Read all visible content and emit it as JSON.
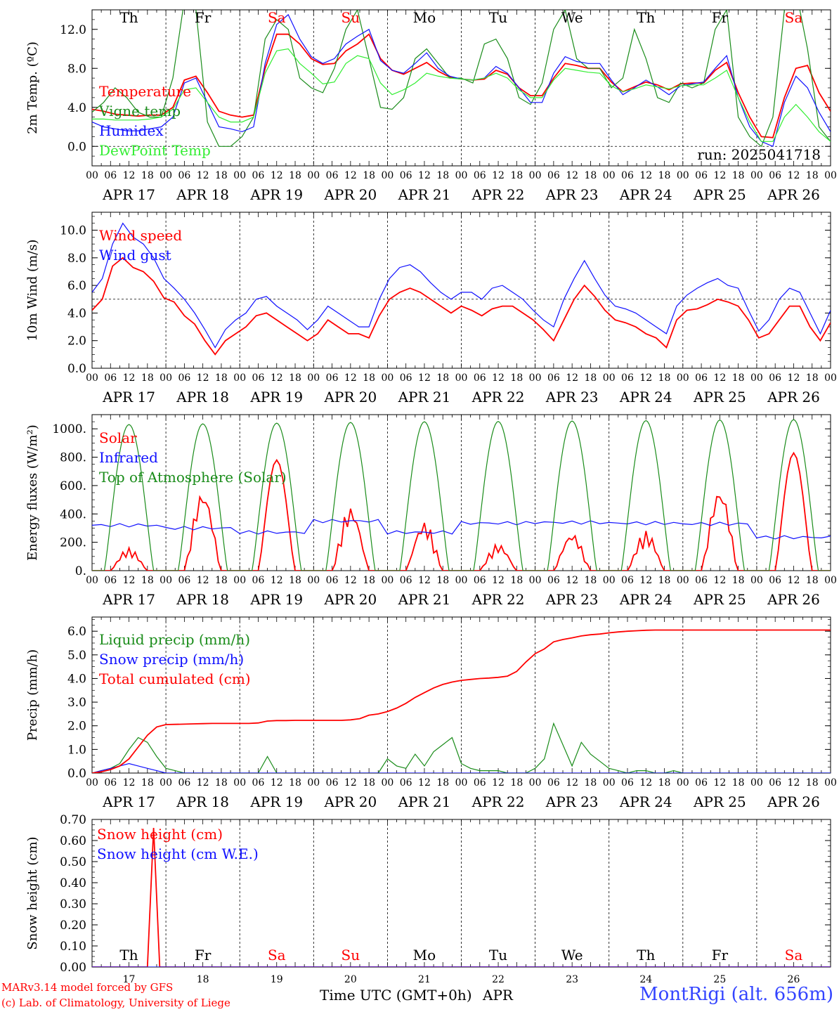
{
  "footer": {
    "model": "MARv3.14 model forced by GFS",
    "lab": "(c) Lab. of Climatology, University of Liege",
    "station": "MontRigi (alt. 656m)",
    "xlabel": "Time UTC (GMT+0h)",
    "month": "APR"
  },
  "run_label": "run: 2025041718",
  "colors": {
    "red": "#ff0000",
    "green": "#1a8c1a",
    "blue": "#1010ff",
    "lightgreen": "#33ee33",
    "weekend": "#ff0000",
    "weekday": "#000000"
  },
  "days": [
    "APR 17",
    "APR 18",
    "APR 19",
    "APR 20",
    "APR 21",
    "APR 22",
    "APR 23",
    "APR 24",
    "APR 25",
    "APR 26"
  ],
  "day_numbers": [
    "17",
    "18",
    "19",
    "20",
    "21",
    "22",
    "23",
    "24",
    "25",
    "26"
  ],
  "weekdays": [
    "Th",
    "Fr",
    "Sa",
    "Su",
    "Mo",
    "Tu",
    "We",
    "Th",
    "Fr",
    "Sa"
  ],
  "weekend": [
    false,
    false,
    true,
    true,
    false,
    false,
    false,
    false,
    false,
    true
  ],
  "hour_ticks": [
    "00",
    "06",
    "12",
    "18"
  ],
  "chart_data": [
    {
      "type": "line",
      "ylabel": "2m Temp. (ºC)",
      "ylim": [
        -2,
        14
      ],
      "yticks": [
        "0.0",
        "4.0",
        "8.0",
        "12.0"
      ],
      "ytick_values": [
        0,
        4,
        8,
        12
      ],
      "dashed_y": 0,
      "x": "hours since APR 17 00 UTC, 3-hourly",
      "series": [
        {
          "name": "Temperature",
          "color": "red",
          "values": [
            3.8,
            3.6,
            3.3,
            3.2,
            3.1,
            3.2,
            3.2,
            4.0,
            6.8,
            7.2,
            5.5,
            3.6,
            3.2,
            3.0,
            3.2,
            8.0,
            11.5,
            11.5,
            10.5,
            9.0,
            8.4,
            8.5,
            9.8,
            10.5,
            11.5,
            9.0,
            7.8,
            7.4,
            8.0,
            8.6,
            7.7,
            7.1,
            6.9,
            6.8,
            6.9,
            7.8,
            7.4,
            6.0,
            5.2,
            5.2,
            7.0,
            8.5,
            8.3,
            8.0,
            8.0,
            6.6,
            5.6,
            6.1,
            6.6,
            6.3,
            5.8,
            6.4,
            6.5,
            6.5,
            7.8,
            8.6,
            5.5,
            3.0,
            1.0,
            0.9,
            5.0,
            8.0,
            8.3,
            5.5,
            3.6
          ]
        },
        {
          "name": "Vigne temp",
          "color": "green",
          "values": [
            3.5,
            4.5,
            6.0,
            5.0,
            3.5,
            3.0,
            3.0,
            7.0,
            15.0,
            14.0,
            2.5,
            0.0,
            0.0,
            1.0,
            3.0,
            11.0,
            13.0,
            12.0,
            7.0,
            6.0,
            5.5,
            8.0,
            12.0,
            14.0,
            9.0,
            4.0,
            3.8,
            5.0,
            9.0,
            10.0,
            8.5,
            7.0,
            7.0,
            6.5,
            10.5,
            11.0,
            9.0,
            5.0,
            4.3,
            6.5,
            12.0,
            14.0,
            9.0,
            8.0,
            8.0,
            6.0,
            7.0,
            12.0,
            9.0,
            5.0,
            4.5,
            6.5,
            6.0,
            6.5,
            12.0,
            14.0,
            3.0,
            1.0,
            0.0,
            3.0,
            14.0,
            16.0,
            10.0,
            2.0,
            0.5
          ]
        },
        {
          "name": "Humidex",
          "color": "blue",
          "values": [
            2.5,
            2.0,
            1.8,
            1.6,
            1.6,
            1.8,
            2.0,
            3.0,
            6.5,
            7.0,
            4.5,
            2.0,
            1.8,
            1.5,
            2.0,
            8.5,
            12.5,
            13.5,
            11.0,
            9.2,
            8.5,
            9.0,
            10.5,
            11.3,
            12.0,
            8.8,
            7.8,
            7.5,
            8.5,
            9.6,
            8.0,
            7.2,
            6.9,
            6.8,
            7.0,
            8.2,
            7.5,
            6.0,
            4.5,
            4.5,
            7.5,
            9.2,
            8.7,
            8.5,
            8.5,
            6.8,
            5.3,
            6.0,
            6.8,
            6.1,
            5.3,
            6.2,
            6.4,
            6.6,
            8.0,
            9.3,
            5.0,
            2.0,
            0.5,
            0.0,
            4.5,
            7.2,
            6.0,
            3.5,
            1.5
          ]
        },
        {
          "name": "DewPoint Temp",
          "color": "lightgreen",
          "values": [
            2.8,
            2.8,
            2.7,
            2.7,
            2.7,
            2.8,
            3.0,
            3.8,
            5.8,
            6.0,
            4.5,
            3.0,
            2.5,
            2.5,
            3.0,
            7.5,
            9.8,
            10.0,
            8.5,
            7.5,
            6.4,
            6.6,
            8.5,
            9.3,
            9.0,
            6.5,
            5.3,
            5.8,
            6.5,
            7.5,
            7.2,
            7.0,
            6.9,
            6.8,
            7.0,
            7.5,
            7.0,
            5.8,
            5.0,
            5.0,
            6.8,
            8.0,
            7.8,
            7.6,
            7.5,
            6.2,
            5.6,
            5.9,
            6.3,
            6.1,
            5.9,
            6.2,
            6.3,
            6.3,
            7.0,
            7.8,
            5.0,
            2.5,
            0.5,
            0.5,
            3.0,
            4.3,
            3.0,
            1.5,
            0.5
          ]
        }
      ]
    },
    {
      "type": "line",
      "ylabel": "10m Wind (m/s)",
      "ylim": [
        0,
        11.3
      ],
      "yticks": [
        "0.0",
        "2.0",
        "4.0",
        "6.0",
        "8.0",
        "10.0"
      ],
      "ytick_values": [
        0,
        2,
        4,
        6,
        8,
        10
      ],
      "dashed_y": 5,
      "x": "hours since APR 17 00 UTC, 3-hourly",
      "series": [
        {
          "name": "Wind speed",
          "color": "red",
          "values": [
            4.2,
            5.0,
            7.4,
            8.0,
            7.3,
            7.0,
            6.3,
            5.1,
            4.8,
            3.8,
            3.2,
            2.0,
            1.0,
            2.0,
            2.5,
            3.0,
            3.8,
            4.0,
            3.5,
            3.0,
            2.5,
            2.0,
            2.5,
            3.5,
            3.0,
            2.5,
            2.5,
            2.2,
            3.8,
            5.0,
            5.5,
            5.8,
            5.5,
            5.0,
            4.5,
            4.0,
            4.5,
            4.2,
            3.8,
            4.3,
            4.5,
            4.5,
            4.0,
            3.5,
            2.8,
            2.0,
            3.5,
            5.0,
            6.0,
            5.2,
            4.2,
            3.5,
            3.3,
            3.0,
            2.5,
            2.2,
            1.5,
            3.5,
            4.2,
            4.3,
            4.6,
            5.0,
            4.8,
            4.5,
            3.5,
            2.2,
            2.5,
            3.5,
            4.5,
            4.5,
            3.0,
            2.0,
            3.3
          ]
        },
        {
          "name": "Wind gust",
          "color": "blue",
          "values": [
            5.5,
            6.5,
            9.0,
            10.5,
            9.5,
            9.0,
            8.0,
            6.5,
            5.8,
            5.0,
            4.0,
            2.8,
            1.5,
            2.8,
            3.5,
            4.0,
            5.0,
            5.2,
            4.5,
            4.0,
            3.5,
            2.8,
            3.5,
            4.5,
            4.0,
            3.5,
            3.0,
            3.0,
            5.0,
            6.5,
            7.3,
            7.5,
            7.0,
            6.2,
            5.5,
            5.0,
            5.5,
            5.5,
            5.0,
            5.8,
            6.0,
            5.5,
            5.0,
            4.2,
            3.5,
            3.0,
            5.0,
            6.5,
            7.8,
            6.5,
            5.3,
            4.5,
            4.3,
            4.0,
            3.5,
            3.0,
            2.5,
            4.5,
            5.3,
            5.8,
            6.2,
            6.5,
            6.0,
            5.8,
            4.2,
            2.7,
            3.5,
            5.0,
            5.8,
            5.5,
            4.0,
            2.5,
            4.2
          ]
        }
      ]
    },
    {
      "type": "line",
      "ylabel": "Energy fluxes (W/m²)",
      "ylim": [
        0,
        1100
      ],
      "yticks": [
        "0.",
        "200.",
        "400.",
        "600.",
        "800.",
        "1000."
      ],
      "ytick_values": [
        0,
        200,
        400,
        600,
        800,
        1000
      ],
      "dashed_y": null,
      "x": "hours since APR 17 00 UTC",
      "series": [
        {
          "name": "Solar",
          "color": "red",
          "daily_peaks": [
            160,
            580,
            780,
            460,
            350,
            190,
            270,
            280,
            600,
            830
          ]
        },
        {
          "name": "Infrared",
          "color": "blue",
          "daily_levels": [
            320,
            300,
            270,
            350,
            270,
            335,
            340,
            335,
            330,
            235
          ]
        },
        {
          "name": "Top of Atmosphere (Solar)",
          "color": "green",
          "daily_peaks": [
            1030,
            1035,
            1040,
            1045,
            1050,
            1052,
            1055,
            1058,
            1062,
            1065
          ]
        }
      ]
    },
    {
      "type": "line",
      "ylabel": "Precip (mm/h)",
      "ylim": [
        0,
        6.6
      ],
      "yticks": [
        "0.0",
        "1.0",
        "2.0",
        "3.0",
        "4.0",
        "5.0",
        "6.0"
      ],
      "ytick_values": [
        0,
        1,
        2,
        3,
        4,
        5,
        6
      ],
      "dashed_y": null,
      "x": "hours since APR 17 00 UTC, 3-hourly",
      "series": [
        {
          "name": "Liquid precip (mm/h)",
          "color": "green",
          "values": [
            0,
            0.1,
            0.2,
            0.4,
            1.0,
            1.5,
            1.3,
            0.7,
            0.2,
            0.1,
            0,
            0,
            0,
            0,
            0,
            0,
            0,
            0,
            0,
            0.7,
            0,
            0,
            0,
            0,
            0,
            0,
            0,
            0,
            0,
            0,
            0,
            0,
            0.6,
            0.3,
            0.2,
            0.8,
            0.3,
            0.9,
            1.2,
            1.5,
            0.4,
            0.2,
            0.1,
            0.1,
            0.1,
            0,
            0,
            0,
            0.2,
            0.6,
            2.1,
            1.2,
            0.3,
            1.3,
            0.8,
            0.5,
            0.2,
            0.1,
            0,
            0.1,
            0.1,
            0,
            0,
            0.1,
            0,
            0,
            0,
            0,
            0,
            0,
            0,
            0,
            0,
            0,
            0,
            0,
            0,
            0,
            0,
            0,
            0
          ]
        },
        {
          "name": "Snow precip (mm/h)",
          "color": "blue",
          "values": [
            0,
            0.1,
            0.2,
            0.3,
            0.4,
            0.3,
            0.2,
            0.1,
            0,
            0,
            0,
            0,
            0,
            0,
            0,
            0,
            0,
            0,
            0,
            0,
            0,
            0,
            0,
            0,
            0,
            0,
            0,
            0,
            0,
            0,
            0,
            0,
            0,
            0,
            0,
            0,
            0,
            0,
            0,
            0,
            0,
            0,
            0,
            0,
            0,
            0,
            0,
            0,
            0,
            0,
            0,
            0,
            0,
            0,
            0,
            0,
            0,
            0,
            0,
            0,
            0,
            0,
            0,
            0,
            0,
            0,
            0,
            0,
            0,
            0,
            0,
            0,
            0,
            0,
            0,
            0,
            0,
            0,
            0,
            0,
            0
          ]
        },
        {
          "name": "Total cumulated (cm)",
          "color": "red",
          "values": [
            0,
            0.05,
            0.15,
            0.3,
            0.6,
            1.1,
            1.6,
            1.95,
            2.05,
            2.06,
            2.07,
            2.08,
            2.09,
            2.1,
            2.1,
            2.1,
            2.1,
            2.1,
            2.12,
            2.2,
            2.22,
            2.22,
            2.23,
            2.23,
            2.23,
            2.23,
            2.23,
            2.23,
            2.25,
            2.3,
            2.45,
            2.5,
            2.6,
            2.75,
            2.95,
            3.2,
            3.4,
            3.6,
            3.75,
            3.85,
            3.92,
            3.96,
            4.0,
            4.02,
            4.05,
            4.1,
            4.3,
            4.7,
            5.05,
            5.25,
            5.55,
            5.65,
            5.72,
            5.8,
            5.85,
            5.88,
            5.93,
            5.97,
            6.0,
            6.02,
            6.04,
            6.05,
            6.05,
            6.05,
            6.05,
            6.05,
            6.05,
            6.05,
            6.05,
            6.05,
            6.05,
            6.05,
            6.05,
            6.05,
            6.05,
            6.05,
            6.05,
            6.05,
            6.05,
            6.05,
            6.05
          ]
        }
      ]
    },
    {
      "type": "line",
      "ylabel": "Snow height (cm)",
      "ylim": [
        0,
        0.7
      ],
      "yticks": [
        "0.00",
        "0.10",
        "0.20",
        "0.30",
        "0.40",
        "0.50",
        "0.60",
        "0.70"
      ],
      "ytick_values": [
        0,
        0.1,
        0.2,
        0.3,
        0.4,
        0.5,
        0.6,
        0.7
      ],
      "dashed_y": null,
      "x": "hours since APR 17 00 UTC",
      "series": [
        {
          "name": "Snow height (cm)",
          "color": "red",
          "spike": {
            "start_h": 18,
            "peak_h": 20,
            "end_h": 22,
            "peak": 0.66
          }
        },
        {
          "name": "Snow height (cm W.E.)",
          "color": "blue",
          "spike": null
        }
      ]
    }
  ]
}
